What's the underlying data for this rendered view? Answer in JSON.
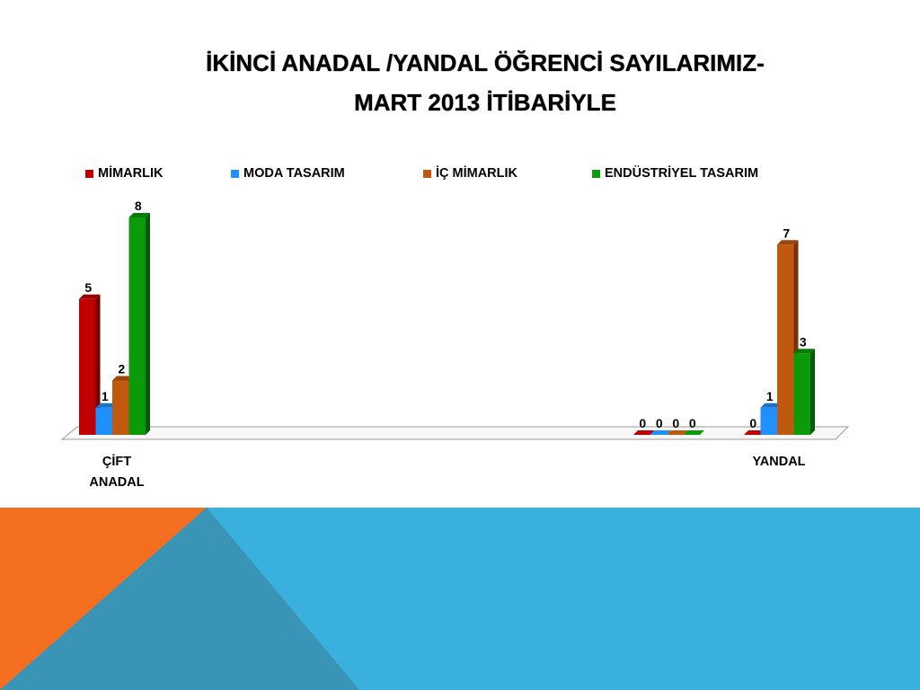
{
  "slide": {
    "title_line1": "İKİNCİ ANADAL /YANDAL ÖĞRENCİ SAYILARIMIZ-",
    "title_line2": "MART 2013 İTİBARİYLE"
  },
  "colors": {
    "mimarlik": "#C00000",
    "moda": "#1E90FF",
    "ic_mimarlik": "#C0580E",
    "endustriyel": "#0A9A0A",
    "band_blue": "#3AB0DE",
    "band_orange": "#F36E1E",
    "band_overlap": "#3994B6"
  },
  "chart_data": {
    "type": "bar",
    "title": "",
    "xlabel": "",
    "ylabel": "",
    "legend_position": "top",
    "grid": false,
    "ylim": [
      0,
      8
    ],
    "categories": [
      "ÇİFT ANADAL",
      "",
      "",
      "YANDAL"
    ],
    "category_label_lines": [
      [
        "ÇİFT",
        "ANADAL"
      ],
      [],
      [],
      [
        "YANDAL"
      ]
    ],
    "series": [
      {
        "name": "MİMARLIK",
        "color": "#C00000",
        "values": [
          5,
          null,
          0,
          0
        ]
      },
      {
        "name": "MODA TASARIM",
        "color": "#1E90FF",
        "values": [
          1,
          null,
          0,
          1
        ]
      },
      {
        "name": "İÇ MİMARLIK",
        "color": "#C0580E",
        "values": [
          2,
          null,
          0,
          7
        ]
      },
      {
        "name": "ENDÜSTRİYEL TASARIM",
        "color": "#0A9A0A",
        "values": [
          8,
          null,
          0,
          3
        ]
      }
    ]
  }
}
